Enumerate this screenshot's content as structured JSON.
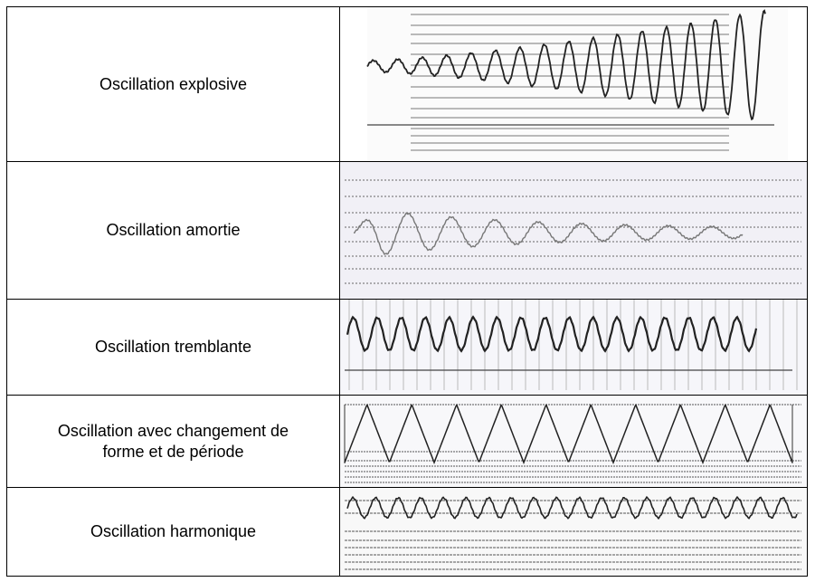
{
  "table": {
    "rows": [
      [
        "Oscillation explosive"
      ],
      [
        "Oscillation amortie"
      ],
      [
        "Oscillation tremblante"
      ],
      [
        "Oscillation avec changement de forme et de période"
      ],
      [
        "Oscillation harmonique"
      ]
    ]
  }
}
